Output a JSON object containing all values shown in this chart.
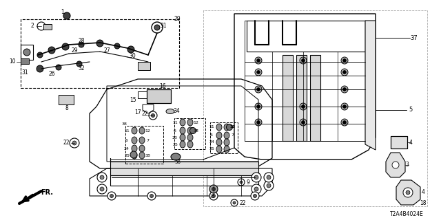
{
  "bg_color": "#ffffff",
  "diagram_code": "T2A4B4024E",
  "fr_label": "FR.",
  "figsize": [
    6.4,
    3.2
  ],
  "dpi": 100
}
